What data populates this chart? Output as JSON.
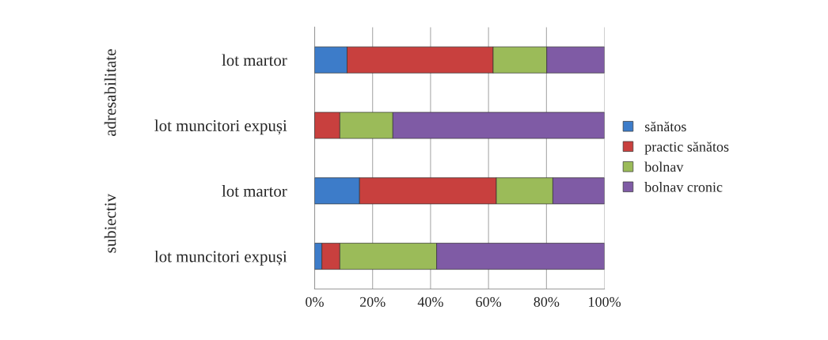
{
  "chart_data": {
    "type": "bar",
    "orientation": "horizontal",
    "stacked": true,
    "categories": [
      "lot martor",
      "lot muncitori expuși",
      "lot martor",
      "lot muncitori expuși"
    ],
    "series": [
      {
        "name": "sănătos",
        "color": "#3d7cc9",
        "values": [
          11.2,
          0,
          15.5,
          2.5
        ]
      },
      {
        "name": "practic sănătos",
        "color": "#c8403e",
        "values": [
          50.4,
          8.7,
          47.2,
          6.2
        ]
      },
      {
        "name": "bolnav",
        "color": "#9bbb59",
        "values": [
          18.5,
          18.3,
          19.5,
          33.4
        ]
      },
      {
        "name": "bolnav cronic",
        "color": "#7f5ba5",
        "values": [
          19.9,
          73.0,
          17.8,
          57.9
        ]
      }
    ],
    "xlim": [
      0,
      100
    ],
    "xticks": [
      {
        "value": 0,
        "label": "0%"
      },
      {
        "value": 20,
        "label": "20%"
      },
      {
        "value": 40,
        "label": "40%"
      },
      {
        "value": 60,
        "label": "60%"
      },
      {
        "value": 80,
        "label": "80%"
      },
      {
        "value": 100,
        "label": "100%"
      }
    ],
    "annotations": [
      "adresabilitate",
      "subiectiv"
    ],
    "grid": "x",
    "legend": "right"
  }
}
